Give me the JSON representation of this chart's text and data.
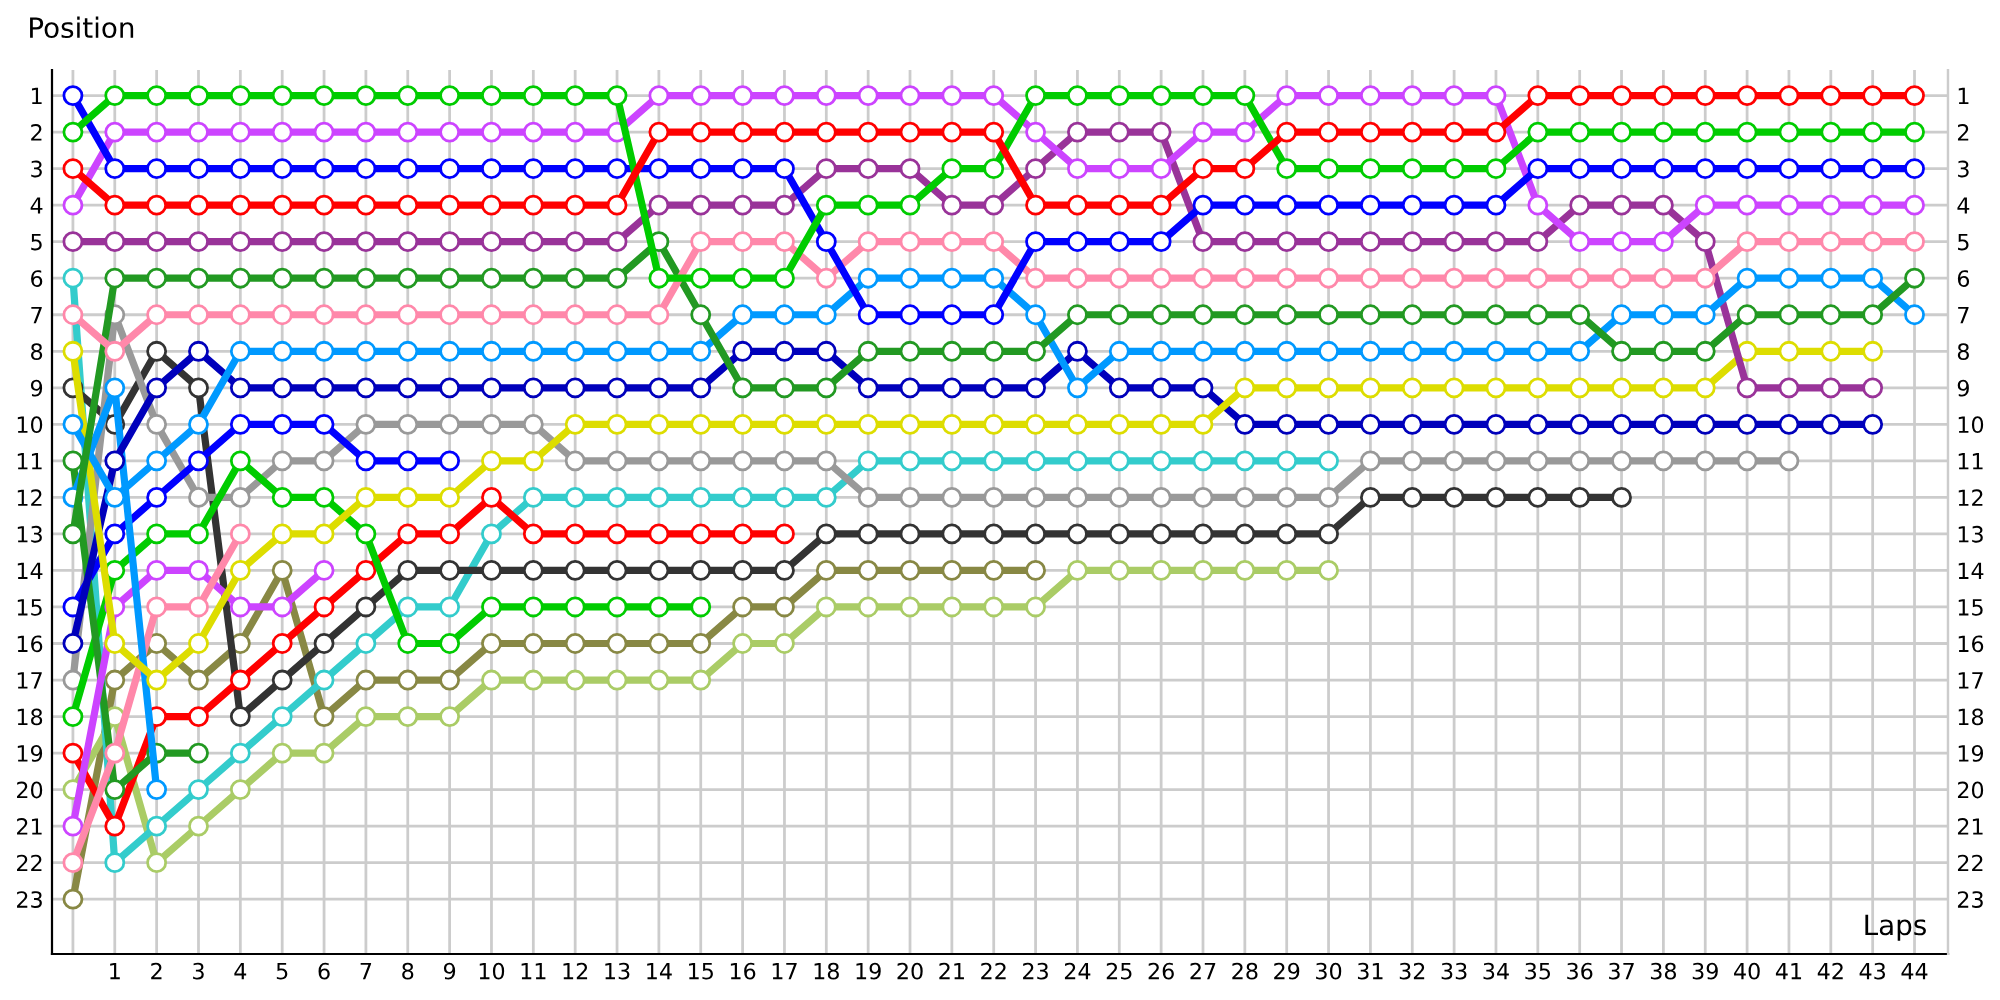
{
  "chart_data": {
    "type": "line",
    "xlabel": "Laps",
    "ylabel": "Position",
    "marker": "circle",
    "grid": true,
    "xlim": [
      -0.5,
      44.8
    ],
    "ylim": [
      24.5,
      0.3
    ],
    "xticks": [
      {
        "value": 0,
        "label": null
      },
      1,
      2,
      3,
      4,
      5,
      6,
      7,
      8,
      9,
      10,
      11,
      12,
      13,
      14,
      15,
      16,
      17,
      18,
      19,
      20,
      21,
      22,
      23,
      24,
      25,
      26,
      27,
      28,
      29,
      30,
      31,
      32,
      33,
      34,
      35,
      36,
      37,
      38,
      39,
      40,
      41,
      42,
      43,
      44
    ],
    "yticks": [
      1,
      2,
      3,
      4,
      5,
      6,
      7,
      8,
      9,
      10,
      11,
      12,
      13,
      14,
      15,
      16,
      17,
      18,
      19,
      20,
      21,
      22,
      23
    ],
    "y2lim": [
      24.5,
      0.3
    ],
    "y2ticks": [
      1,
      2,
      3,
      4,
      5,
      6,
      7,
      8,
      9,
      10,
      11,
      12,
      13,
      14,
      15,
      16,
      17,
      18,
      19,
      20,
      21,
      22,
      23
    ],
    "x": [
      0,
      1,
      2,
      3,
      4,
      5,
      6,
      7,
      8,
      9,
      10,
      11,
      12,
      13,
      14,
      15,
      16,
      17,
      18,
      19,
      20,
      21,
      22,
      23,
      24,
      25,
      26,
      27,
      28,
      29,
      30,
      31,
      32,
      33,
      34,
      35,
      36,
      37,
      38,
      39,
      40,
      41,
      42,
      43,
      44
    ],
    "series": [
      {
        "color": "#888844",
        "values": [
          23,
          17,
          16,
          17,
          16,
          14,
          18,
          17,
          17,
          17,
          16,
          16,
          16,
          16,
          16,
          16,
          15,
          15,
          14,
          14,
          14,
          14,
          14,
          14,
          null,
          null,
          null,
          null,
          null,
          null,
          null,
          null,
          null,
          null,
          null,
          null,
          null,
          null,
          null,
          null,
          null,
          null,
          null,
          null,
          null
        ]
      },
      {
        "color": "#aacc66",
        "values": [
          20,
          18,
          22,
          21,
          20,
          19,
          19,
          18,
          18,
          18,
          17,
          17,
          17,
          17,
          17,
          17,
          16,
          16,
          15,
          15,
          15,
          15,
          15,
          15,
          14,
          14,
          14,
          14,
          14,
          14,
          14,
          null,
          null,
          null,
          null,
          null,
          null,
          null,
          null,
          null,
          null,
          null,
          null,
          null,
          null
        ]
      },
      {
        "color": "#33cccc",
        "values": [
          6,
          22,
          21,
          20,
          19,
          18,
          17,
          16,
          15,
          15,
          13,
          12,
          12,
          12,
          12,
          12,
          12,
          12,
          12,
          11,
          11,
          11,
          11,
          11,
          11,
          11,
          11,
          11,
          11,
          11,
          11,
          null,
          null,
          null,
          null,
          null,
          null,
          null,
          null,
          null,
          null,
          null,
          null,
          null,
          null
        ]
      },
      {
        "color": "#333333",
        "values": [
          9,
          10,
          8,
          9,
          18,
          17,
          16,
          15,
          14,
          14,
          14,
          14,
          14,
          14,
          14,
          14,
          14,
          14,
          13,
          13,
          13,
          13,
          13,
          13,
          13,
          13,
          13,
          13,
          13,
          13,
          13,
          12,
          12,
          12,
          12,
          12,
          12,
          12,
          null,
          null,
          null,
          null,
          null,
          null,
          null
        ]
      },
      {
        "color": "#999999",
        "values": [
          17,
          7,
          10,
          12,
          12,
          11,
          11,
          10,
          10,
          10,
          10,
          10,
          11,
          11,
          11,
          11,
          11,
          11,
          11,
          12,
          12,
          12,
          12,
          12,
          12,
          12,
          12,
          12,
          12,
          12,
          12,
          11,
          11,
          11,
          11,
          11,
          11,
          11,
          11,
          11,
          11,
          11,
          null,
          null,
          null
        ]
      },
      {
        "color": "#ff0000",
        "values": [
          19,
          21,
          18,
          18,
          17,
          16,
          15,
          14,
          13,
          13,
          12,
          13,
          13,
          13,
          13,
          13,
          13,
          13,
          null,
          null,
          null,
          null,
          null,
          null,
          null,
          null,
          null,
          null,
          null,
          null,
          null,
          null,
          null,
          null,
          null,
          null,
          null,
          null,
          null,
          null,
          null,
          null,
          null,
          null,
          null
        ]
      },
      {
        "color": "#00cc00",
        "values": [
          18,
          14,
          13,
          13,
          11,
          12,
          12,
          13,
          16,
          16,
          15,
          15,
          15,
          15,
          15,
          15,
          null,
          null,
          null,
          null,
          null,
          null,
          null,
          null,
          null,
          null,
          null,
          null,
          null,
          null,
          null,
          null,
          null,
          null,
          null,
          null,
          null,
          null,
          null,
          null,
          null,
          null,
          null,
          null,
          null
        ]
      },
      {
        "color": "#0000ff",
        "values": [
          15,
          13,
          12,
          11,
          10,
          10,
          10,
          11,
          11,
          11,
          null,
          null,
          null,
          null,
          null,
          null,
          null,
          null,
          null,
          null,
          null,
          null,
          null,
          null,
          null,
          null,
          null,
          null,
          null,
          null,
          null,
          null,
          null,
          null,
          null,
          null,
          null,
          null,
          null,
          null,
          null,
          null,
          null,
          null,
          null
        ]
      },
      {
        "color": "#229922",
        "values": [
          11,
          20,
          19,
          19,
          null,
          null,
          null,
          null,
          null,
          null,
          null,
          null,
          null,
          null,
          null,
          null,
          null,
          null,
          null,
          null,
          null,
          null,
          null,
          null,
          null,
          null,
          null,
          null,
          null,
          null,
          null,
          null,
          null,
          null,
          null,
          null,
          null,
          null,
          null,
          null,
          null,
          null,
          null,
          null,
          null
        ]
      },
      {
        "color": "#cc44ff",
        "values": [
          21,
          15,
          14,
          14,
          15,
          15,
          14,
          null,
          null,
          null,
          null,
          null,
          null,
          null,
          null,
          null,
          null,
          null,
          null,
          null,
          null,
          null,
          null,
          null,
          null,
          null,
          null,
          null,
          null,
          null,
          null,
          null,
          null,
          null,
          null,
          null,
          null,
          null,
          null,
          null,
          null,
          null,
          null,
          null,
          null
        ]
      },
      {
        "color": "#ff88aa",
        "values": [
          22,
          19,
          15,
          15,
          13,
          null,
          null,
          null,
          null,
          null,
          null,
          null,
          null,
          null,
          null,
          null,
          null,
          null,
          null,
          null,
          null,
          null,
          null,
          null,
          null,
          null,
          null,
          null,
          null,
          null,
          null,
          null,
          null,
          null,
          null,
          null,
          null,
          null,
          null,
          null,
          null,
          null,
          null,
          null,
          null
        ]
      },
      {
        "color": "#0099ff",
        "values": [
          12,
          9,
          20,
          null,
          null,
          null,
          null,
          null,
          null,
          null,
          null,
          null,
          null,
          null,
          null,
          null,
          null,
          null,
          null,
          null,
          null,
          null,
          null,
          null,
          null,
          null,
          null,
          null,
          null,
          null,
          null,
          null,
          null,
          null,
          null,
          null,
          null,
          null,
          null,
          null,
          null,
          null,
          null,
          null,
          null
        ]
      },
      {
        "color": "#0000bb",
        "values": [
          16,
          11,
          9,
          8,
          9,
          9,
          9,
          9,
          9,
          9,
          9,
          9,
          9,
          9,
          9,
          9,
          8,
          8,
          8,
          9,
          9,
          9,
          9,
          9,
          8,
          9,
          9,
          9,
          10,
          10,
          10,
          10,
          10,
          10,
          10,
          10,
          10,
          10,
          10,
          10,
          10,
          10,
          10,
          10,
          null
        ]
      },
      {
        "color": "#dddd00",
        "values": [
          8,
          16,
          17,
          16,
          14,
          13,
          13,
          12,
          12,
          12,
          11,
          11,
          10,
          10,
          10,
          10,
          10,
          10,
          10,
          10,
          10,
          10,
          10,
          10,
          10,
          10,
          10,
          10,
          9,
          9,
          9,
          9,
          9,
          9,
          9,
          9,
          9,
          9,
          9,
          9,
          8,
          8,
          8,
          8,
          null
        ]
      },
      {
        "color": "#993399",
        "values": [
          5,
          5,
          5,
          5,
          5,
          5,
          5,
          5,
          5,
          5,
          5,
          5,
          5,
          5,
          4,
          4,
          4,
          4,
          3,
          3,
          3,
          4,
          4,
          3,
          2,
          2,
          2,
          5,
          5,
          5,
          5,
          5,
          5,
          5,
          5,
          5,
          4,
          4,
          4,
          5,
          9,
          9,
          9,
          9,
          null
        ]
      },
      {
        "color": "#0099ff",
        "values": [
          10,
          12,
          11,
          10,
          8,
          8,
          8,
          8,
          8,
          8,
          8,
          8,
          8,
          8,
          8,
          8,
          7,
          7,
          7,
          6,
          6,
          6,
          6,
          7,
          9,
          8,
          8,
          8,
          8,
          8,
          8,
          8,
          8,
          8,
          8,
          8,
          8,
          7,
          7,
          7,
          6,
          6,
          6,
          6,
          7
        ]
      },
      {
        "color": "#229922",
        "values": [
          13,
          6,
          6,
          6,
          6,
          6,
          6,
          6,
          6,
          6,
          6,
          6,
          6,
          6,
          5,
          7,
          9,
          9,
          9,
          8,
          8,
          8,
          8,
          8,
          7,
          7,
          7,
          7,
          7,
          7,
          7,
          7,
          7,
          7,
          7,
          7,
          7,
          8,
          8,
          8,
          7,
          7,
          7,
          7,
          6
        ]
      },
      {
        "color": "#ff88aa",
        "values": [
          7,
          8,
          7,
          7,
          7,
          7,
          7,
          7,
          7,
          7,
          7,
          7,
          7,
          7,
          7,
          5,
          5,
          5,
          6,
          5,
          5,
          5,
          5,
          6,
          6,
          6,
          6,
          6,
          6,
          6,
          6,
          6,
          6,
          6,
          6,
          6,
          6,
          6,
          6,
          6,
          5,
          5,
          5,
          5,
          5
        ]
      },
      {
        "color": "#cc44ff",
        "values": [
          4,
          2,
          2,
          2,
          2,
          2,
          2,
          2,
          2,
          2,
          2,
          2,
          2,
          2,
          1,
          1,
          1,
          1,
          1,
          1,
          1,
          1,
          1,
          2,
          3,
          3,
          3,
          2,
          2,
          1,
          1,
          1,
          1,
          1,
          1,
          4,
          5,
          5,
          5,
          4,
          4,
          4,
          4,
          4,
          4
        ]
      },
      {
        "color": "#0000ff",
        "values": [
          1,
          3,
          3,
          3,
          3,
          3,
          3,
          3,
          3,
          3,
          3,
          3,
          3,
          3,
          3,
          3,
          3,
          3,
          5,
          7,
          7,
          7,
          7,
          5,
          5,
          5,
          5,
          4,
          4,
          4,
          4,
          4,
          4,
          4,
          4,
          3,
          3,
          3,
          3,
          3,
          3,
          3,
          3,
          3,
          3
        ]
      },
      {
        "color": "#00cc00",
        "values": [
          2,
          1,
          1,
          1,
          1,
          1,
          1,
          1,
          1,
          1,
          1,
          1,
          1,
          1,
          6,
          6,
          6,
          6,
          4,
          4,
          4,
          3,
          3,
          1,
          1,
          1,
          1,
          1,
          1,
          3,
          3,
          3,
          3,
          3,
          3,
          2,
          2,
          2,
          2,
          2,
          2,
          2,
          2,
          2,
          2
        ]
      },
      {
        "color": "#ff0000",
        "values": [
          3,
          4,
          4,
          4,
          4,
          4,
          4,
          4,
          4,
          4,
          4,
          4,
          4,
          4,
          2,
          2,
          2,
          2,
          2,
          2,
          2,
          2,
          2,
          4,
          4,
          4,
          4,
          3,
          3,
          2,
          2,
          2,
          2,
          2,
          2,
          1,
          1,
          1,
          1,
          1,
          1,
          1,
          1,
          1,
          1
        ]
      }
    ]
  }
}
